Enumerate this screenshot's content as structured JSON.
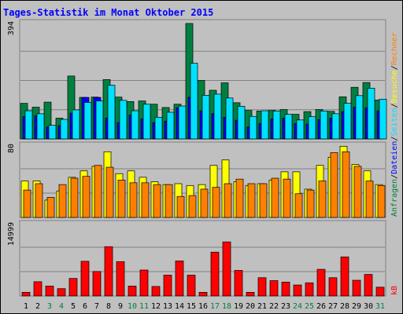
{
  "chart_data": {
    "type": "bar",
    "title": "Tages-Statistik im Monat Oktober 2015",
    "categories": [
      "1",
      "2",
      "3",
      "4",
      "5",
      "6",
      "7",
      "8",
      "9",
      "10",
      "11",
      "12",
      "13",
      "14",
      "15",
      "16",
      "17",
      "18",
      "19",
      "20",
      "21",
      "22",
      "23",
      "24",
      "25",
      "26",
      "27",
      "28",
      "29",
      "30",
      "31"
    ],
    "weekend_days": [
      "3",
      "4",
      "10",
      "11",
      "17",
      "18",
      "24",
      "25",
      "31"
    ],
    "panels": [
      {
        "name": "hits-files",
        "ymax_label": "394",
        "ylim": [
          0,
          394
        ],
        "series": [
          {
            "name": "Anfragen",
            "color": "#008040",
            "values": [
              120,
              107,
              124,
              70,
              212,
              140,
              141,
              200,
              141,
              126,
              128,
              117,
              106,
              117,
              389,
              197,
              164,
              189,
              122,
              96,
              94,
              96,
              99,
              83,
              92,
              99,
              93,
              142,
              174,
              190,
              131
            ]
          },
          {
            "name": "Dateien",
            "color": "#0000ff",
            "values": [
              75,
              78,
              40,
              45,
              87,
              140,
              140,
              70,
              55,
              80,
              67,
              55,
              60,
              105,
              140,
              95,
              85,
              73,
              63,
              40,
              52,
              67,
              70,
              52,
              50,
              65,
              70,
              92,
              107,
              105,
              95
            ]
          },
          {
            "name": "Seiten",
            "color": "#00e0ff",
            "values": [
              95,
              85,
              46,
              66,
              98,
              123,
              128,
              181,
              130,
              95,
              117,
              73,
              90,
              111,
              255,
              147,
              151,
              138,
              110,
              76,
              95,
              94,
              83,
              64,
              75,
              94,
              85,
              120,
              146,
              171,
              134
            ]
          }
        ]
      },
      {
        "name": "pages-visits",
        "ymax_label": "80",
        "ylim": [
          0,
          80
        ],
        "series": [
          {
            "name": "Besuche",
            "color": "#ffff00",
            "values": [
              40,
              40,
              19,
              29,
              44,
              51,
              56,
              72,
              48,
              51,
              44,
              39,
              36,
              37,
              35,
              36,
              57,
              63,
              39,
              35,
              37,
              41,
              50,
              50,
              31,
              57,
              66,
              78,
              58,
              51,
              36
            ]
          },
          {
            "name": "Rechner",
            "color": "#ff8000",
            "values": [
              30,
              37,
              22,
              36,
              43,
              45,
              57,
              55,
              41,
              38,
              38,
              36,
              36,
              23,
              24,
              31,
              33,
              37,
              42,
              37,
              37,
              43,
              42,
              26,
              30,
              40,
              71,
              72,
              56,
              40,
              35
            ]
          }
        ]
      },
      {
        "name": "kbytes",
        "ymax_label": "14999",
        "ylim": [
          0,
          20000
        ],
        "series": [
          {
            "name": "kB",
            "color": "#ff0000",
            "values": [
              1000,
              3900,
              2700,
              2000,
              4800,
              9500,
              6700,
              13500,
              9400,
              2700,
              7100,
              2600,
              5700,
              9600,
              5700,
              1000,
              12000,
              14800,
              7000,
              1000,
              5000,
              4200,
              3800,
              3000,
              3600,
              7300,
              5000,
              10700,
              4300,
              5900,
              2400
            ]
          }
        ]
      }
    ],
    "legend_right": {
      "top": [
        {
          "text": "Anfragen",
          "color": "#008040"
        },
        {
          "text": "/",
          "color": "#000000"
        },
        {
          "text": "Dateien",
          "color": "#0000ff"
        },
        {
          "text": "/",
          "color": "#000000"
        },
        {
          "text": "Seiten",
          "color": "#00e0ff"
        },
        {
          "text": "/",
          "color": "#000000"
        },
        {
          "text": "Besuche",
          "color": "#ffff00"
        },
        {
          "text": "/",
          "color": "#000000"
        },
        {
          "text": "Rechner",
          "color": "#ff8000"
        }
      ],
      "bottom": [
        {
          "text": "kB",
          "color": "#ff0000"
        }
      ]
    }
  }
}
